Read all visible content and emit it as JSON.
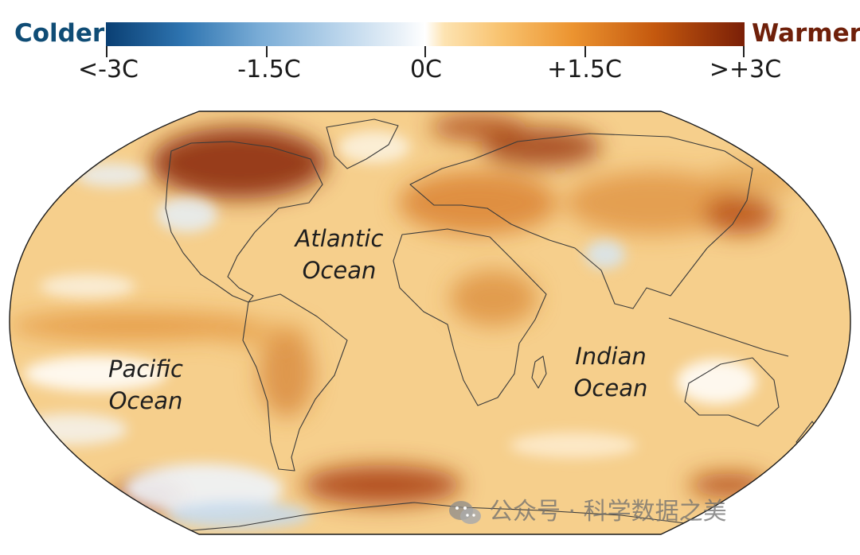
{
  "legend": {
    "left_label": "Colder",
    "right_label": "Warmer",
    "ticks": [
      "<-3C",
      "-1.5C",
      "0C",
      "+1.5C",
      ">+3C"
    ],
    "scale_range": [
      -3,
      3
    ],
    "gradient_colors": [
      "#0a3f73",
      "#2e74b0",
      "#bcd6ec",
      "#ffffff",
      "#f8c26e",
      "#ec9430",
      "#c4580e",
      "#7a1f07"
    ],
    "left_label_color": "#0f4c75",
    "right_label_color": "#6f200a"
  },
  "map": {
    "projection": "Robinson",
    "ocean_labels": [
      {
        "line1": "Atlantic",
        "line2": "Ocean"
      },
      {
        "line1": "Pacific",
        "line2": "Ocean"
      },
      {
        "line1": "Indian",
        "line2": "Ocean"
      }
    ],
    "base_color": "#f6cf8c",
    "land_border_color": "#3a3a3a"
  },
  "watermark": {
    "icon": "wechat-icon",
    "text": "公众号 · 科学数据之美"
  }
}
